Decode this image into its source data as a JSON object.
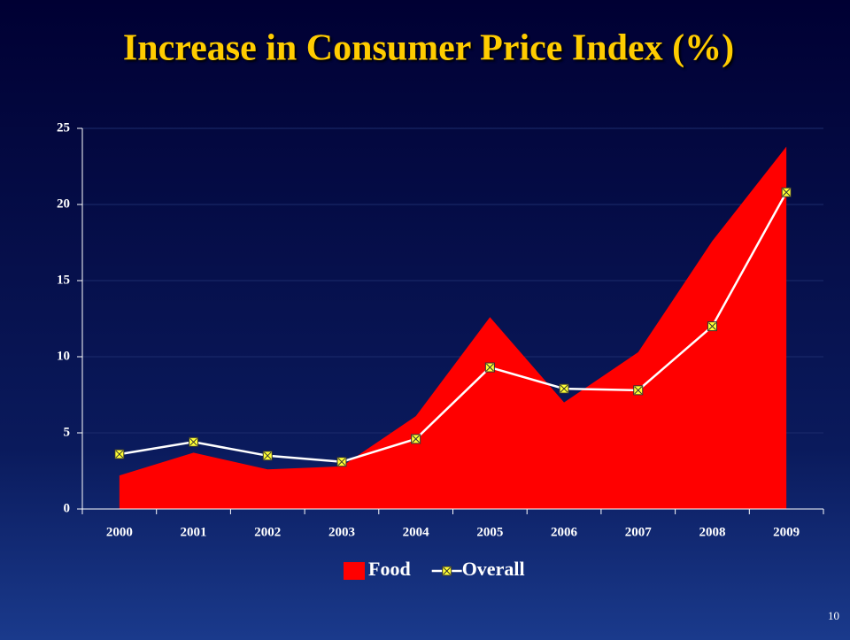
{
  "chart_data": {
    "type": "area_line",
    "title": "Increase in Consumer Price Index (%)",
    "categories": [
      "2000",
      "2001",
      "2002",
      "2003",
      "2004",
      "2005",
      "2006",
      "2007",
      "2008",
      "2009"
    ],
    "series": [
      {
        "name": "Food",
        "type": "area",
        "color": "#ff0000",
        "values": [
          2.2,
          3.7,
          2.6,
          2.8,
          6.1,
          12.6,
          7.0,
          10.3,
          17.6,
          23.8
        ]
      },
      {
        "name": "Overall",
        "type": "line",
        "color": "#ffffff",
        "marker_color": "#ffff33",
        "values": [
          3.6,
          4.4,
          3.5,
          3.1,
          4.6,
          9.3,
          7.9,
          7.8,
          12.0,
          20.8
        ]
      }
    ],
    "ylim": [
      0,
      25
    ],
    "yticks": [
      0,
      5,
      10,
      15,
      20,
      25
    ],
    "grid": true,
    "legend": "bottom",
    "page_number": "10"
  }
}
